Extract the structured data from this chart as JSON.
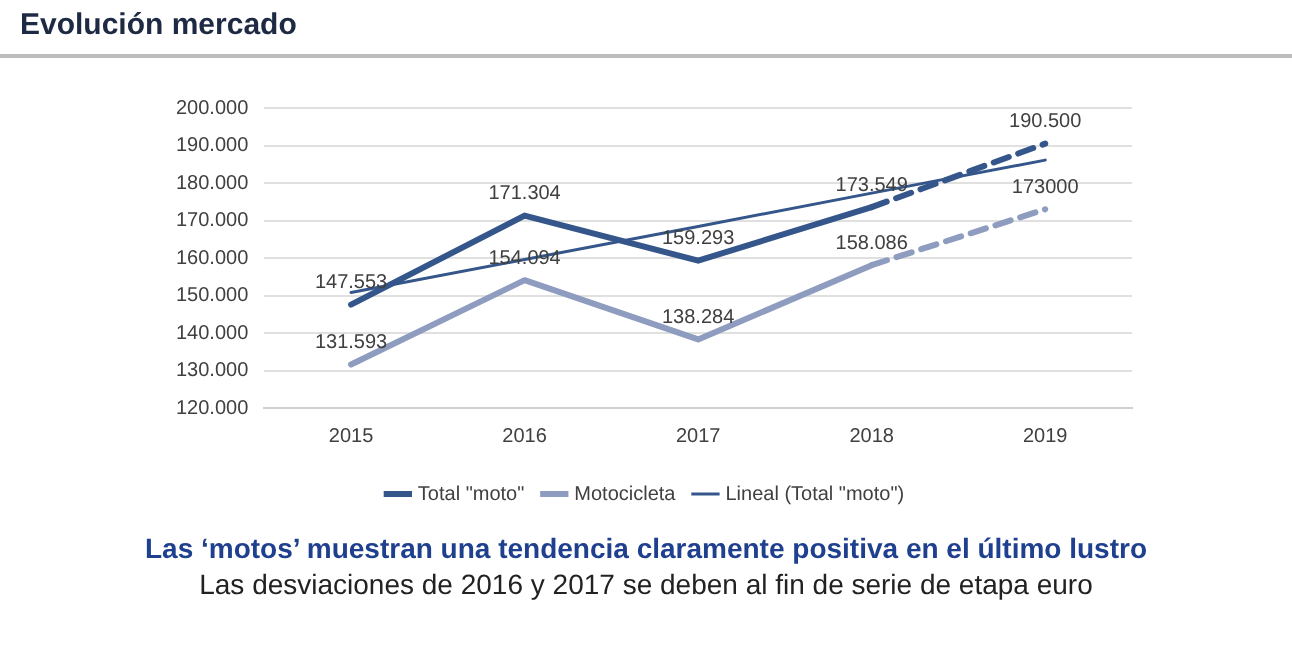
{
  "chart_data": {
    "type": "line",
    "title": "Evolución mercado",
    "annotations": [
      "Las ‘motos’ muestran una tendencia claramente positiva en el último lustro",
      "Las desviaciones de 2016 y 2017 se deben al fin de serie de etapa euro"
    ],
    "categories": [
      "2015",
      "2016",
      "2017",
      "2018",
      "2019"
    ],
    "ylim": [
      120000,
      200000
    ],
    "yticks": [
      {
        "value": 120000,
        "label": "120.000"
      },
      {
        "value": 130000,
        "label": "130.000"
      },
      {
        "value": 140000,
        "label": "140.000"
      },
      {
        "value": 150000,
        "label": "150.000"
      },
      {
        "value": 160000,
        "label": "160.000"
      },
      {
        "value": 170000,
        "label": "170.000"
      },
      {
        "value": 180000,
        "label": "180.000"
      },
      {
        "value": 190000,
        "label": "190.000"
      },
      {
        "value": 200000,
        "label": "200.000"
      }
    ],
    "grid": "y",
    "legend": "bottom",
    "marker": "none",
    "series": [
      {
        "name": "Total \"moto\"",
        "color": "#34568b",
        "line_style": "solid",
        "values": [
          147553,
          171304,
          159293,
          173549,
          null
        ],
        "value_labels": [
          "147.553",
          "171.304",
          "159.293",
          "173.549",
          null
        ]
      },
      {
        "name": "Motocicleta",
        "color": "#8e9cc0",
        "line_style": "solid",
        "values": [
          131593,
          154094,
          138284,
          158086,
          null
        ],
        "value_labels": [
          "131.593",
          "154.094",
          "138.284",
          "158.086",
          null
        ]
      },
      {
        "name": "Lineal (Total \"moto\")",
        "color": "#34568b",
        "line_style": "solid",
        "values": [
          150800,
          159600,
          168400,
          177300,
          186100
        ]
      },
      {
        "color": "#34568b",
        "line_style": "dashed",
        "values": [
          null,
          null,
          null,
          173549,
          190500
        ],
        "value_labels": [
          null,
          null,
          null,
          null,
          "190.500"
        ]
      },
      {
        "color": "#8e9cc0",
        "line_style": "dashed",
        "values": [
          null,
          null,
          null,
          158086,
          173000
        ],
        "value_labels": [
          null,
          null,
          null,
          null,
          "173000"
        ]
      }
    ]
  }
}
